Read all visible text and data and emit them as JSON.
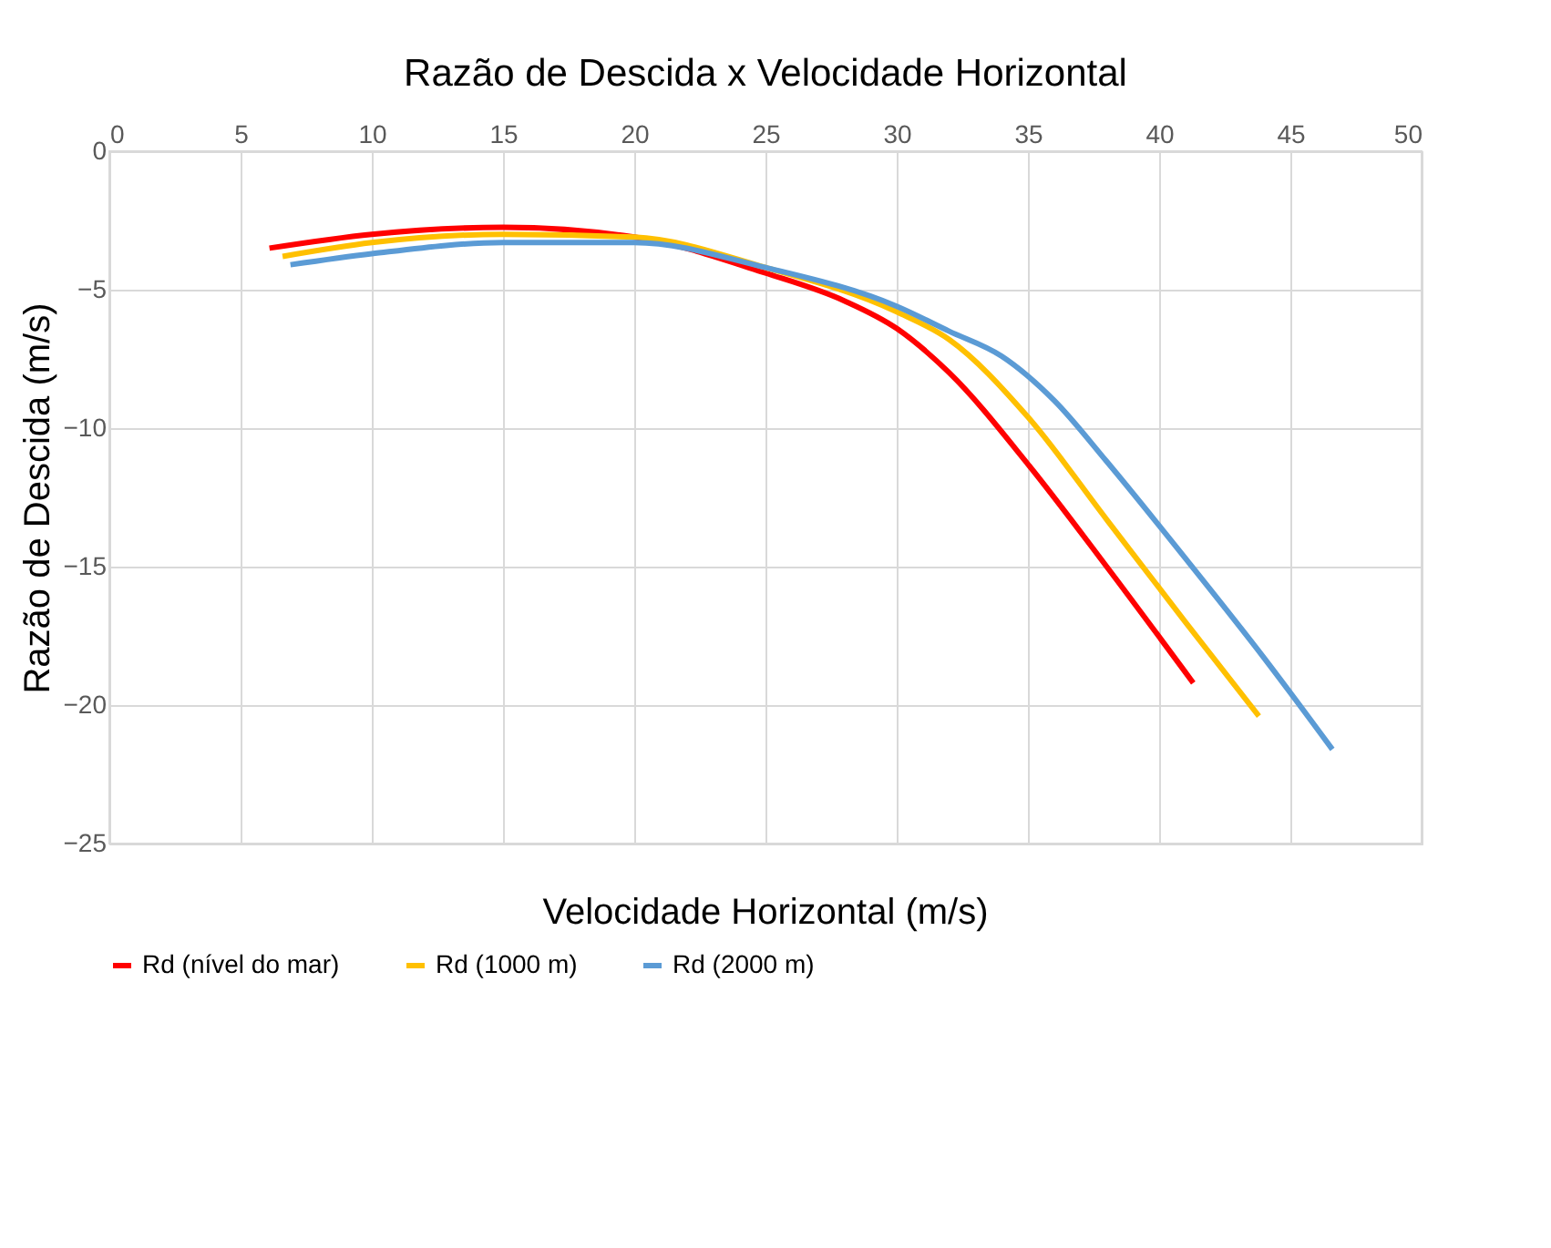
{
  "chart_data": {
    "type": "line",
    "title": "Razão de Descida x Velocidade Horizontal",
    "xlabel": "Velocidade Horizontal (m/s)",
    "ylabel": "Razão de Descida (m/s)",
    "series": [
      {
        "name": "Rd (nível do mar)",
        "color": "#ff0000",
        "x": [
          6.1,
          10,
          15,
          20,
          25,
          28,
          30,
          32,
          35,
          38,
          41.3
        ],
        "values": [
          -3.5,
          -3.0,
          -2.75,
          -3.1,
          -4.4,
          -5.4,
          -6.4,
          -8.0,
          -11.3,
          -15.0,
          -19.2
        ]
      },
      {
        "name": "Rd (1000 m)",
        "color": "#ffc000",
        "x": [
          6.6,
          10,
          15,
          20,
          25,
          30,
          32,
          35,
          38,
          41,
          43.8
        ],
        "values": [
          -3.8,
          -3.3,
          -3.0,
          -3.1,
          -4.2,
          -5.8,
          -6.8,
          -9.6,
          -13.3,
          -17.0,
          -20.4
        ]
      },
      {
        "name": "Rd (2000 m)",
        "color": "#5b9bd5",
        "x": [
          6.9,
          10,
          15,
          20,
          25,
          30,
          32,
          34,
          36,
          38,
          41,
          44,
          46.6
        ],
        "values": [
          -4.1,
          -3.7,
          -3.3,
          -3.3,
          -4.2,
          -5.6,
          -6.5,
          -7.4,
          -9.0,
          -11.2,
          -14.7,
          -18.3,
          -21.6
        ]
      }
    ],
    "xlim": [
      0,
      50
    ],
    "xticks": [
      0,
      5,
      10,
      15,
      20,
      25,
      30,
      35,
      40,
      45,
      50
    ],
    "ylim": [
      -25,
      0
    ],
    "yticks": [
      0,
      -5,
      -10,
      -15,
      -20,
      -25
    ],
    "grid": true,
    "legend": "bottom",
    "marker": "none",
    "line_style": "solid"
  }
}
